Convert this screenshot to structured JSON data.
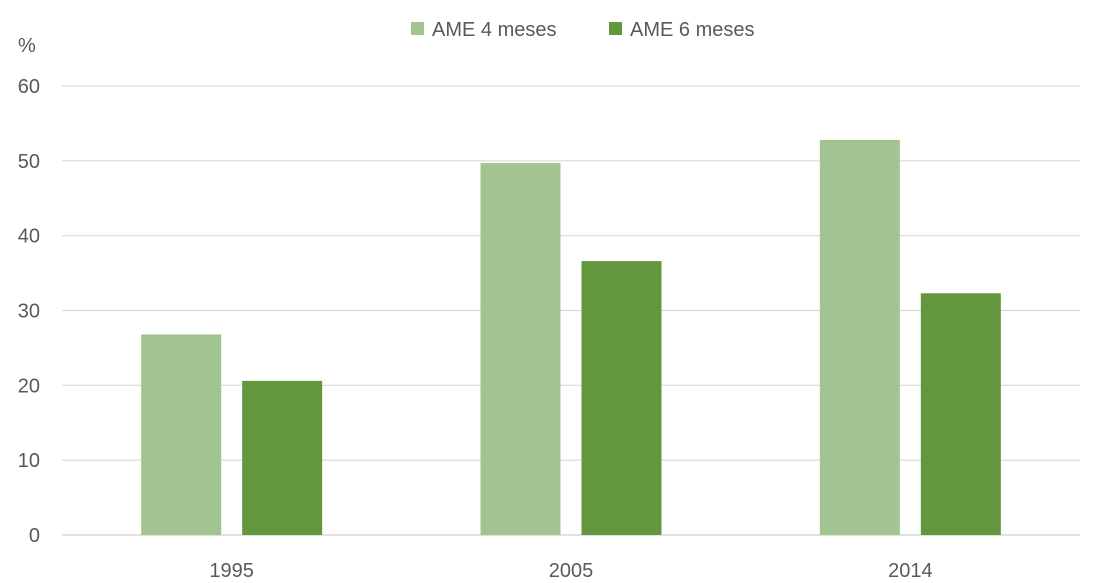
{
  "chart_data": {
    "type": "bar",
    "unit_label": "%",
    "categories": [
      "1995",
      "2005",
      "2014"
    ],
    "series": [
      {
        "name": "AME 4 meses",
        "color": "#a1c490",
        "values": [
          26.8,
          49.7,
          52.8
        ]
      },
      {
        "name": "AME 6 meses",
        "color": "#62973d",
        "values": [
          20.6,
          36.6,
          32.3
        ]
      }
    ],
    "y_ticks": [
      0,
      10,
      20,
      30,
      40,
      50,
      60
    ],
    "ylim": [
      0,
      60
    ],
    "grid": true,
    "gridline_color": "#d9d9d9",
    "legend_position": "top-center"
  }
}
